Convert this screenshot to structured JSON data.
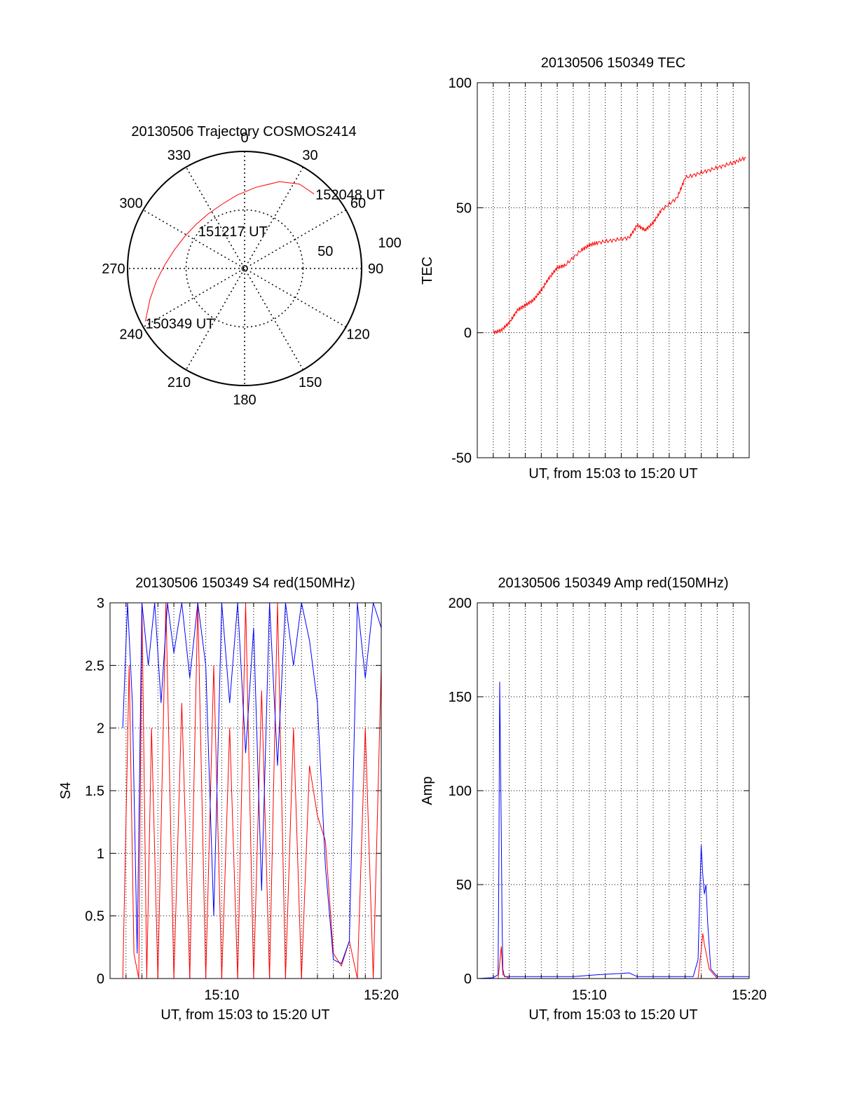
{
  "chart_data": [
    {
      "type": "polar",
      "id": "trajectory",
      "title": "20130506 Trajectory COSMOS2414",
      "azimuth_labels": [
        "0",
        "30",
        "60",
        "90",
        "120",
        "150",
        "180",
        "210",
        "240",
        "270",
        "300",
        "330"
      ],
      "radial_labels": [
        "50",
        "100"
      ],
      "radial_max": 100,
      "trajectory": {
        "color": "#ff0000",
        "points": [
          {
            "az": 242,
            "r": 96
          },
          {
            "az": 252,
            "r": 85
          },
          {
            "az": 262,
            "r": 76
          },
          {
            "az": 273,
            "r": 68
          },
          {
            "az": 285,
            "r": 62
          },
          {
            "az": 298,
            "r": 58
          },
          {
            "az": 312,
            "r": 56
          },
          {
            "az": 326,
            "r": 56
          },
          {
            "az": 340,
            "r": 58
          },
          {
            "az": 354,
            "r": 63
          },
          {
            "az": 8,
            "r": 70
          },
          {
            "az": 22,
            "r": 80
          },
          {
            "az": 33,
            "r": 86
          },
          {
            "az": 43,
            "r": 87
          }
        ]
      },
      "annotations": [
        {
          "text": "152048 UT",
          "az": 43,
          "r": 87
        },
        {
          "text": "151217 UT",
          "az": 350,
          "r": 28
        },
        {
          "text": "150349 UT",
          "az": 242,
          "r": 96
        }
      ]
    },
    {
      "type": "line",
      "id": "tec",
      "title": "20130506 150349 TEC",
      "xlabel": "UT, from 15:03 to 15:20 UT",
      "ylabel": "TEC",
      "ylim": [
        -50,
        100
      ],
      "yticks": [
        -50,
        0,
        50,
        100
      ],
      "xlim": [
        0,
        17
      ],
      "grid": true,
      "series": [
        {
          "name": "TEC",
          "color": "#ff0000",
          "x": [
            1.0,
            1.5,
            2.0,
            2.5,
            3.0,
            3.5,
            4.0,
            4.5,
            5.0,
            5.5,
            6.5,
            7.0,
            7.5,
            8.5,
            9.5,
            10.0,
            10.5,
            11.0,
            11.5,
            12.5,
            13.0,
            14.0,
            15.0,
            16.0,
            16.8
          ],
          "values": [
            0,
            1,
            4,
            9,
            11,
            13,
            17,
            22,
            26,
            27,
            33,
            35,
            36,
            37,
            38,
            43,
            41,
            44,
            49,
            54,
            62,
            64,
            66,
            68,
            70
          ]
        }
      ]
    },
    {
      "type": "line",
      "id": "s4",
      "title": "20130506 150349 S4 red(150MHz)",
      "xlabel": "UT, from 15:03 to 15:20 UT",
      "ylabel": "S4",
      "ylim": [
        0,
        3
      ],
      "yticks": [
        "0",
        "0.5",
        "1",
        "1.5",
        "2",
        "2.5",
        "3"
      ],
      "xticks": [
        "15:10",
        "15:20"
      ],
      "xlim": [
        0,
        17
      ],
      "grid": true,
      "series": [
        {
          "name": "red",
          "color": "#ff0000",
          "x": [
            0.8,
            1.2,
            1.5,
            1.8,
            2.0,
            2.3,
            2.6,
            3.0,
            3.5,
            4.0,
            4.5,
            5.0,
            5.5,
            6.0,
            6.5,
            7.0,
            7.5,
            8.0,
            8.5,
            9.0,
            9.5,
            10.0,
            10.5,
            11.0,
            11.5,
            12.0,
            12.5,
            13.0,
            13.5,
            14.0,
            14.5,
            15.0,
            15.5,
            16.0,
            16.5,
            17.0
          ],
          "values": [
            0.0,
            2.5,
            0.2,
            0.0,
            3.0,
            0.0,
            2.0,
            0.0,
            3.0,
            0.0,
            2.2,
            0.0,
            3.0,
            0.0,
            2.5,
            0.0,
            2.0,
            0.0,
            3.0,
            0.0,
            2.3,
            0.0,
            3.0,
            0.0,
            2.0,
            0.0,
            1.7,
            1.3,
            1.1,
            0.2,
            0.1,
            0.3,
            0.0,
            2.0,
            0.0,
            2.5
          ]
        },
        {
          "name": "blue",
          "color": "#0000ff",
          "x": [
            0.8,
            1.1,
            1.4,
            1.7,
            2.0,
            2.4,
            2.8,
            3.2,
            3.6,
            4.0,
            4.5,
            5.0,
            5.5,
            6.0,
            6.5,
            7.0,
            7.5,
            8.0,
            8.5,
            9.0,
            9.5,
            10.0,
            10.5,
            11.0,
            11.5,
            12.0,
            12.5,
            13.0,
            13.5,
            14.0,
            14.5,
            15.0,
            15.5,
            16.0,
            16.5,
            17.0
          ],
          "values": [
            2.0,
            3.0,
            2.2,
            0.2,
            3.0,
            2.5,
            3.0,
            2.2,
            3.0,
            2.6,
            3.0,
            2.4,
            3.0,
            2.5,
            0.5,
            3.0,
            2.2,
            3.0,
            1.8,
            2.8,
            0.7,
            3.0,
            1.7,
            3.0,
            2.5,
            3.0,
            2.7,
            2.2,
            0.9,
            0.15,
            0.12,
            0.3,
            3.0,
            2.4,
            3.0,
            2.8
          ]
        }
      ]
    },
    {
      "type": "line",
      "id": "amp",
      "title": "20130506 150349 Amp red(150MHz)",
      "xlabel": "UT, from 15:03 to 15:20 UT",
      "ylabel": "Amp",
      "ylim": [
        0,
        200
      ],
      "yticks": [
        0,
        50,
        100,
        150,
        200
      ],
      "xticks": [
        "15:10",
        "15:20"
      ],
      "xlim": [
        0,
        17
      ],
      "grid": true,
      "series": [
        {
          "name": "blue",
          "color": "#0000ff",
          "x": [
            0.0,
            1.0,
            1.3,
            1.35,
            1.4,
            1.45,
            1.5,
            1.55,
            1.6,
            1.7,
            2.0,
            6.0,
            7.5,
            9.5,
            10.0,
            13.5,
            13.8,
            13.9,
            14.0,
            14.1,
            14.2,
            14.3,
            14.4,
            14.6,
            15.0,
            17.0
          ],
          "values": [
            0,
            0.5,
            2,
            60,
            158,
            120,
            80,
            30,
            5,
            1,
            1,
            1,
            2,
            3,
            1,
            1,
            10,
            40,
            71,
            55,
            45,
            50,
            30,
            5,
            1,
            1
          ]
        },
        {
          "name": "red",
          "color": "#ff0000",
          "x": [
            0.0,
            1.3,
            1.4,
            1.5,
            1.6,
            2.0,
            13.8,
            14.0,
            14.1,
            14.2,
            14.3,
            14.5,
            15.0,
            17.0
          ],
          "values": [
            0,
            0,
            8,
            17,
            2,
            0,
            0,
            15,
            24,
            18,
            14,
            5,
            0,
            0
          ]
        }
      ]
    }
  ]
}
